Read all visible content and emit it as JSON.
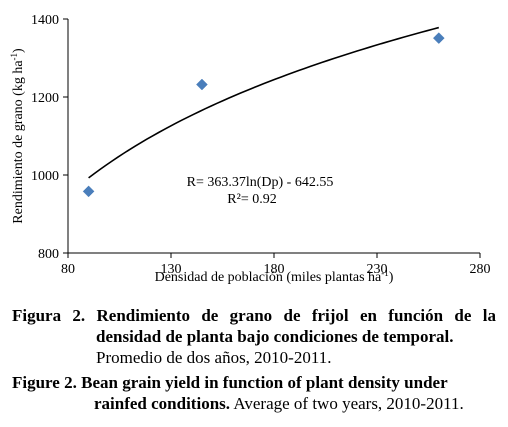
{
  "chart_data": {
    "type": "scatter",
    "xlabel_main": "Densidad de población (miles plantas ha",
    "xlabel_sup": "-1",
    "xlabel_end": ")",
    "ylabel_main": "Rendimiento de grano (kg ha",
    "ylabel_sup": "-1",
    "ylabel_end": ")",
    "xlim": [
      80,
      280
    ],
    "ylim": [
      800,
      1400
    ],
    "xticks": [
      80,
      130,
      180,
      230,
      280
    ],
    "yticks": [
      800,
      1000,
      1200,
      1400
    ],
    "points": [
      {
        "x": 90,
        "y": 958
      },
      {
        "x": 145,
        "y": 1232
      },
      {
        "x": 260,
        "y": 1351
      }
    ],
    "trendline": {
      "a": 363.37,
      "b": -642.55,
      "x_from": 90,
      "x_to": 260
    },
    "equation": "R= 363.37ln(Dp) - 642.55",
    "r2": "R²= 0.92",
    "marker_color": "#4a7ebb",
    "line_color": "#000000"
  },
  "caption_es": {
    "label": "Figura 2.",
    "title_line1": " Rendimiento de grano de frijol en función de la",
    "title_line2": "densidad de planta bajo condiciones de temporal.",
    "subtitle": "Promedio de dos años, 2010-2011."
  },
  "caption_en": {
    "label": "Figure 2.",
    "title_line1": " Bean grain yield in function of plant density under",
    "title_line2": "rainfed conditions.",
    "subtitle": " Average of two years, 2010-2011."
  }
}
